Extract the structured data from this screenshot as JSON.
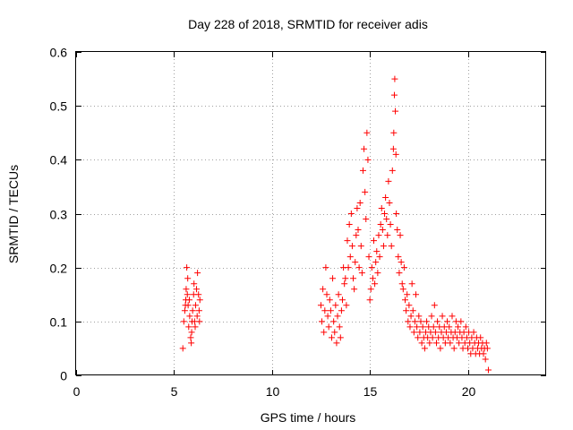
{
  "chart_data": {
    "type": "scatter",
    "title": "Day 228 of 2018, SRMTID for receiver adis",
    "xlabel": "GPS time / hours",
    "ylabel": "SRMTID / TECUs",
    "xlim": [
      0,
      24
    ],
    "ylim": [
      0,
      0.6
    ],
    "xticks": [
      0,
      5,
      10,
      15,
      20
    ],
    "yticks": [
      0,
      0.1,
      0.2,
      0.3,
      0.4,
      0.5,
      0.6
    ],
    "grid": true,
    "marker": "+",
    "marker_color": "#ff0000",
    "series": [
      {
        "name": "SRMTID",
        "points": [
          [
            5.45,
            0.05
          ],
          [
            5.5,
            0.1
          ],
          [
            5.55,
            0.12
          ],
          [
            5.6,
            0.14
          ],
          [
            5.62,
            0.16
          ],
          [
            5.65,
            0.2
          ],
          [
            5.7,
            0.18
          ],
          [
            5.72,
            0.13
          ],
          [
            5.75,
            0.09
          ],
          [
            5.8,
            0.11
          ],
          [
            5.85,
            0.07
          ],
          [
            5.88,
            0.06
          ],
          [
            5.9,
            0.08
          ],
          [
            5.95,
            0.12
          ],
          [
            6.0,
            0.15
          ],
          [
            6.02,
            0.17
          ],
          [
            6.05,
            0.1
          ],
          [
            6.1,
            0.13
          ],
          [
            6.15,
            0.16
          ],
          [
            6.2,
            0.19
          ],
          [
            6.25,
            0.15
          ],
          [
            6.28,
            0.12
          ],
          [
            6.3,
            0.1
          ],
          [
            6.32,
            0.14
          ],
          [
            5.58,
            0.13
          ],
          [
            5.68,
            0.15
          ],
          [
            5.78,
            0.14
          ],
          [
            5.92,
            0.1
          ],
          [
            6.08,
            0.09
          ],
          [
            6.18,
            0.11
          ],
          [
            12.5,
            0.13
          ],
          [
            12.55,
            0.1
          ],
          [
            12.6,
            0.16
          ],
          [
            12.65,
            0.08
          ],
          [
            12.7,
            0.12
          ],
          [
            12.75,
            0.2
          ],
          [
            12.8,
            0.15
          ],
          [
            12.85,
            0.11
          ],
          [
            12.9,
            0.09
          ],
          [
            12.95,
            0.14
          ],
          [
            13.0,
            0.12
          ],
          [
            13.05,
            0.07
          ],
          [
            13.1,
            0.18
          ],
          [
            13.15,
            0.1
          ],
          [
            13.2,
            0.08
          ],
          [
            13.25,
            0.13
          ],
          [
            13.3,
            0.06
          ],
          [
            13.35,
            0.11
          ],
          [
            13.4,
            0.15
          ],
          [
            13.45,
            0.09
          ],
          [
            13.5,
            0.07
          ],
          [
            13.55,
            0.12
          ],
          [
            13.6,
            0.14
          ],
          [
            13.65,
            0.2
          ],
          [
            13.7,
            0.17
          ],
          [
            13.75,
            0.18
          ],
          [
            13.8,
            0.13
          ],
          [
            13.85,
            0.25
          ],
          [
            13.9,
            0.2
          ],
          [
            13.95,
            0.28
          ],
          [
            14.0,
            0.22
          ],
          [
            14.05,
            0.3
          ],
          [
            14.1,
            0.24
          ],
          [
            14.15,
            0.18
          ],
          [
            14.2,
            0.16
          ],
          [
            14.25,
            0.21
          ],
          [
            14.3,
            0.26
          ],
          [
            14.35,
            0.31
          ],
          [
            14.4,
            0.27
          ],
          [
            14.45,
            0.2
          ],
          [
            14.5,
            0.32
          ],
          [
            14.55,
            0.24
          ],
          [
            14.6,
            0.19
          ],
          [
            14.65,
            0.38
          ],
          [
            14.7,
            0.42
          ],
          [
            14.75,
            0.34
          ],
          [
            14.8,
            0.29
          ],
          [
            14.85,
            0.45
          ],
          [
            14.9,
            0.4
          ],
          [
            14.95,
            0.22
          ],
          [
            15.0,
            0.14
          ],
          [
            15.05,
            0.16
          ],
          [
            15.1,
            0.2
          ],
          [
            15.15,
            0.18
          ],
          [
            15.2,
            0.25
          ],
          [
            15.25,
            0.17
          ],
          [
            15.3,
            0.21
          ],
          [
            15.35,
            0.23
          ],
          [
            15.4,
            0.19
          ],
          [
            15.45,
            0.26
          ],
          [
            15.5,
            0.22
          ],
          [
            15.55,
            0.28
          ],
          [
            15.6,
            0.31
          ],
          [
            15.65,
            0.27
          ],
          [
            15.7,
            0.24
          ],
          [
            15.75,
            0.3
          ],
          [
            15.8,
            0.33
          ],
          [
            15.85,
            0.29
          ],
          [
            15.9,
            0.26
          ],
          [
            15.95,
            0.36
          ],
          [
            16.0,
            0.32
          ],
          [
            16.05,
            0.28
          ],
          [
            16.1,
            0.24
          ],
          [
            16.15,
            0.38
          ],
          [
            16.2,
            0.42
          ],
          [
            16.22,
            0.45
          ],
          [
            16.25,
            0.52
          ],
          [
            16.27,
            0.55
          ],
          [
            16.3,
            0.49
          ],
          [
            16.33,
            0.41
          ],
          [
            16.35,
            0.3
          ],
          [
            16.4,
            0.27
          ],
          [
            16.45,
            0.22
          ],
          [
            16.5,
            0.19
          ],
          [
            16.55,
            0.26
          ],
          [
            16.6,
            0.21
          ],
          [
            16.65,
            0.17
          ],
          [
            16.7,
            0.16
          ],
          [
            16.75,
            0.2
          ],
          [
            16.8,
            0.14
          ],
          [
            16.85,
            0.12
          ],
          [
            16.9,
            0.15
          ],
          [
            16.95,
            0.1
          ],
          [
            17.0,
            0.13
          ],
          [
            17.05,
            0.09
          ],
          [
            17.1,
            0.11
          ],
          [
            17.15,
            0.17
          ],
          [
            17.2,
            0.12
          ],
          [
            17.25,
            0.08
          ],
          [
            17.3,
            0.1
          ],
          [
            17.35,
            0.15
          ],
          [
            17.4,
            0.09
          ],
          [
            17.45,
            0.07
          ],
          [
            17.5,
            0.11
          ],
          [
            17.55,
            0.08
          ],
          [
            17.6,
            0.1
          ],
          [
            17.65,
            0.06
          ],
          [
            17.7,
            0.09
          ],
          [
            17.75,
            0.07
          ],
          [
            17.8,
            0.05
          ],
          [
            17.85,
            0.08
          ],
          [
            17.9,
            0.1
          ],
          [
            17.95,
            0.07
          ],
          [
            18.0,
            0.09
          ],
          [
            18.05,
            0.06
          ],
          [
            18.1,
            0.08
          ],
          [
            18.15,
            0.11
          ],
          [
            18.2,
            0.07
          ],
          [
            18.25,
            0.09
          ],
          [
            18.3,
            0.13
          ],
          [
            18.35,
            0.08
          ],
          [
            18.4,
            0.06
          ],
          [
            18.45,
            0.1
          ],
          [
            18.5,
            0.07
          ],
          [
            18.55,
            0.09
          ],
          [
            18.6,
            0.05
          ],
          [
            18.65,
            0.08
          ],
          [
            18.7,
            0.11
          ],
          [
            18.75,
            0.07
          ],
          [
            18.8,
            0.09
          ],
          [
            18.85,
            0.06
          ],
          [
            18.9,
            0.08
          ],
          [
            18.95,
            0.1
          ],
          [
            19.0,
            0.07
          ],
          [
            19.05,
            0.09
          ],
          [
            19.1,
            0.06
          ],
          [
            19.15,
            0.08
          ],
          [
            19.2,
            0.11
          ],
          [
            19.25,
            0.07
          ],
          [
            19.3,
            0.05
          ],
          [
            19.35,
            0.08
          ],
          [
            19.4,
            0.1
          ],
          [
            19.45,
            0.07
          ],
          [
            19.5,
            0.09
          ],
          [
            19.55,
            0.06
          ],
          [
            19.6,
            0.08
          ],
          [
            19.65,
            0.1
          ],
          [
            19.7,
            0.07
          ],
          [
            19.75,
            0.05
          ],
          [
            19.8,
            0.08
          ],
          [
            19.85,
            0.06
          ],
          [
            19.9,
            0.09
          ],
          [
            19.95,
            0.07
          ],
          [
            20.0,
            0.05
          ],
          [
            20.05,
            0.08
          ],
          [
            20.1,
            0.06
          ],
          [
            20.15,
            0.04
          ],
          [
            20.2,
            0.07
          ],
          [
            20.25,
            0.05
          ],
          [
            20.3,
            0.08
          ],
          [
            20.35,
            0.06
          ],
          [
            20.4,
            0.04
          ],
          [
            20.45,
            0.07
          ],
          [
            20.5,
            0.05
          ],
          [
            20.55,
            0.06
          ],
          [
            20.6,
            0.04
          ],
          [
            20.65,
            0.07
          ],
          [
            20.7,
            0.05
          ],
          [
            20.75,
            0.06
          ],
          [
            20.8,
            0.04
          ],
          [
            20.85,
            0.05
          ],
          [
            20.9,
            0.03
          ],
          [
            20.95,
            0.06
          ],
          [
            21.0,
            0.05
          ],
          [
            21.05,
            0.01
          ]
        ]
      }
    ]
  }
}
